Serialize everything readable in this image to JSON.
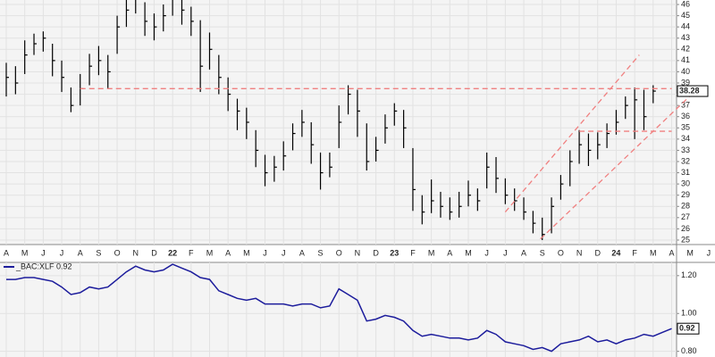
{
  "chart_data": [
    {
      "type": "ohlc",
      "categories": [
        "A",
        null,
        "M",
        null,
        "J",
        null,
        "J",
        null,
        "A",
        null,
        "S",
        null,
        "O",
        null,
        "N",
        null,
        "D",
        null,
        "22",
        null,
        "F",
        null,
        "M",
        null,
        "A",
        null,
        "M",
        null,
        "J",
        null,
        "J",
        null,
        "A",
        null,
        "S",
        null,
        "O",
        null,
        "N",
        null,
        "D",
        null,
        "23",
        null,
        "F",
        null,
        "M",
        null,
        "A",
        null,
        "M",
        null,
        "J",
        null,
        "J",
        null,
        "A",
        null,
        "S",
        null,
        "O",
        null,
        "N",
        null,
        "D",
        null,
        "24",
        null,
        "F",
        null,
        "M",
        null,
        "A",
        null,
        "M",
        null,
        "J"
      ],
      "high": [
        40.8,
        40.5,
        42.8,
        43.4,
        43.6,
        42.5,
        41,
        38.6,
        39.8,
        41.6,
        42.3,
        41.5,
        45,
        46.4,
        46.8,
        46.2,
        45.2,
        46,
        46.8,
        46.6,
        45.8,
        44.6,
        43.5,
        41.5,
        39.5,
        37.6,
        36.8,
        34.8,
        32.6,
        32.5,
        33.8,
        35.4,
        36.6,
        35.5,
        32.8,
        32.8,
        37,
        38.8,
        38.4,
        35.4,
        34.2,
        36.2,
        37.2,
        36.6,
        33.2,
        29,
        30.4,
        29.3,
        28.8,
        29.3,
        30.3,
        29.6,
        32.8,
        32.4,
        30.5,
        29.6,
        28.8,
        27.6,
        27,
        28.8,
        30.8,
        33,
        34.8,
        34.5,
        34.6,
        35.4,
        36.6,
        37.8,
        38.6,
        38.4,
        38.8,
        null,
        null,
        null,
        null,
        null,
        null
      ],
      "low": [
        37.8,
        38,
        39.8,
        41.5,
        41.8,
        39.6,
        38.2,
        36.4,
        37,
        38.8,
        39.7,
        38.5,
        41.6,
        44,
        45.2,
        43.2,
        42.8,
        43.6,
        45,
        44.2,
        43.2,
        38.2,
        40.2,
        38,
        36.5,
        34.8,
        34,
        31.5,
        29.8,
        30.2,
        31.2,
        33,
        34.2,
        31.8,
        29.5,
        30.6,
        33.2,
        36.2,
        34.2,
        31.2,
        32,
        33.6,
        35.2,
        33.2,
        27.6,
        26.4,
        27.4,
        27,
        26.8,
        27,
        28,
        27.6,
        29.6,
        29.2,
        28.2,
        27.6,
        26.8,
        25.6,
        25,
        25.6,
        28.6,
        29.8,
        31.8,
        31.6,
        32.2,
        33.2,
        34.4,
        35.8,
        34,
        34.8,
        37.2,
        null,
        null,
        null,
        null,
        null,
        null
      ],
      "close": [
        39.5,
        39,
        41.5,
        42.5,
        43,
        41,
        39.5,
        37,
        38.5,
        40.5,
        41,
        40,
        44,
        45.5,
        46.5,
        44.5,
        44,
        45,
        46.5,
        45.5,
        44.5,
        40.5,
        42,
        39.5,
        38,
        36.5,
        35.5,
        33,
        31,
        31.5,
        32.5,
        34.5,
        35.5,
        33.5,
        31,
        31.5,
        35.5,
        38,
        36.5,
        32,
        33,
        35,
        36.5,
        35,
        29.5,
        27.5,
        28.5,
        28,
        27.5,
        28,
        29,
        28.5,
        31.5,
        30.5,
        29,
        28.5,
        27.5,
        26.5,
        25.5,
        28,
        30,
        32,
        33.5,
        33,
        33.5,
        34.5,
        35.5,
        37,
        37.5,
        36,
        38.28,
        null,
        null,
        null,
        null,
        null,
        null
      ],
      "color": "#000000",
      "ylim": [
        24.6,
        46.4
      ],
      "yticks": [
        25,
        26,
        27,
        28,
        29,
        30,
        31,
        32,
        33,
        34,
        35,
        36,
        37,
        38,
        39,
        40,
        41,
        42,
        43,
        44,
        45,
        46
      ],
      "grid": true,
      "trend_lines": [
        {
          "color": "#f08080",
          "x": [
            8,
            72
          ],
          "y": [
            38.5,
            38.5
          ]
        },
        {
          "color": "#f08080",
          "x": [
            62,
            72
          ],
          "y": [
            34.7,
            34.7
          ]
        },
        {
          "color": "#f08080",
          "x": [
            54,
            68.5
          ],
          "y": [
            27.5,
            41.5
          ]
        },
        {
          "color": "#f08080",
          "x": [
            57.8,
            75.2
          ],
          "y": [
            25.1,
            38.8
          ]
        }
      ]
    },
    {
      "type": "line",
      "series": [
        {
          "name": "_BAC:XLF 0.92",
          "color": "#1c1c9c",
          "values": [
            1.18,
            1.18,
            1.19,
            1.19,
            1.18,
            1.17,
            1.14,
            1.1,
            1.11,
            1.14,
            1.13,
            1.14,
            1.18,
            1.22,
            1.25,
            1.23,
            1.22,
            1.23,
            1.26,
            1.24,
            1.22,
            1.19,
            1.18,
            1.12,
            1.1,
            1.08,
            1.07,
            1.08,
            1.05,
            1.05,
            1.05,
            1.04,
            1.05,
            1.05,
            1.03,
            1.04,
            1.13,
            1.1,
            1.07,
            0.96,
            0.97,
            0.99,
            0.98,
            0.96,
            0.91,
            0.88,
            0.89,
            0.88,
            0.87,
            0.87,
            0.86,
            0.87,
            0.91,
            0.89,
            0.85,
            0.84,
            0.83,
            0.81,
            0.82,
            0.8,
            0.84,
            0.85,
            0.86,
            0.88,
            0.85,
            0.86,
            0.84,
            0.86,
            0.87,
            0.89,
            0.88,
            0.9,
            0.92,
            null,
            null,
            null,
            null
          ]
        }
      ],
      "ylim": [
        0.77,
        1.27
      ],
      "yticks": [
        {
          "value": 0.8,
          "label": "0.80"
        },
        {
          "value": 1.0,
          "label": "1.00"
        },
        {
          "value": 1.2,
          "label": "1.20"
        }
      ],
      "grid": true
    }
  ]
}
